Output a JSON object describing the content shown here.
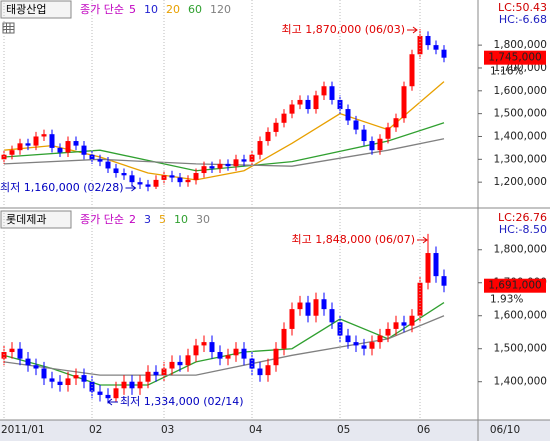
{
  "chart_data": [
    {
      "type": "candlestick",
      "title": "태광산업",
      "legend_prefix": "종가 단순",
      "series": [
        {
          "name": "5",
          "color": "#c000c0"
        },
        {
          "name": "10",
          "color": "#2020d0"
        },
        {
          "name": "20",
          "color": "#e8a000",
          "x": [
            0,
            6,
            12,
            18,
            24,
            30,
            36,
            42,
            48,
            55
          ],
          "values": [
            1340000,
            1360000,
            1310000,
            1240000,
            1210000,
            1250000,
            1370000,
            1500000,
            1430000,
            1640000
          ]
        },
        {
          "name": "60",
          "color": "#30a030",
          "x": [
            0,
            12,
            24,
            36,
            48,
            55
          ],
          "values": [
            1310000,
            1340000,
            1250000,
            1290000,
            1380000,
            1460000
          ]
        },
        {
          "name": "120",
          "color": "#808080",
          "x": [
            0,
            12,
            24,
            36,
            48,
            55
          ],
          "values": [
            1280000,
            1300000,
            1280000,
            1270000,
            1340000,
            1390000
          ]
        }
      ],
      "open": [
        1300000,
        1320000,
        1340000,
        1370000,
        1360000,
        1400000,
        1410000,
        1350000,
        1330000,
        1380000,
        1360000,
        1320000,
        1300000,
        1290000,
        1260000,
        1240000,
        1230000,
        1200000,
        1190000,
        1180000,
        1210000,
        1230000,
        1220000,
        1200000,
        1210000,
        1240000,
        1270000,
        1260000,
        1280000,
        1270000,
        1300000,
        1290000,
        1320000,
        1380000,
        1420000,
        1460000,
        1500000,
        1540000,
        1560000,
        1520000,
        1580000,
        1620000,
        1560000,
        1520000,
        1470000,
        1430000,
        1380000,
        1340000,
        1390000,
        1440000,
        1480000,
        1620000,
        1760000,
        1840000,
        1800000,
        1780000
      ],
      "high": [
        1340000,
        1360000,
        1390000,
        1390000,
        1420000,
        1430000,
        1430000,
        1370000,
        1400000,
        1400000,
        1380000,
        1340000,
        1320000,
        1310000,
        1280000,
        1260000,
        1250000,
        1220000,
        1210000,
        1230000,
        1250000,
        1250000,
        1240000,
        1230000,
        1260000,
        1290000,
        1290000,
        1300000,
        1300000,
        1320000,
        1320000,
        1340000,
        1400000,
        1440000,
        1480000,
        1520000,
        1560000,
        1580000,
        1580000,
        1600000,
        1640000,
        1640000,
        1580000,
        1540000,
        1490000,
        1450000,
        1400000,
        1410000,
        1460000,
        1500000,
        1640000,
        1780000,
        1870000,
        1860000,
        1820000,
        1800000
      ],
      "low": [
        1280000,
        1300000,
        1320000,
        1340000,
        1340000,
        1380000,
        1330000,
        1310000,
        1310000,
        1340000,
        1300000,
        1280000,
        1270000,
        1240000,
        1220000,
        1210000,
        1180000,
        1170000,
        1160000,
        1170000,
        1190000,
        1200000,
        1180000,
        1180000,
        1190000,
        1220000,
        1240000,
        1240000,
        1250000,
        1250000,
        1270000,
        1270000,
        1300000,
        1360000,
        1400000,
        1440000,
        1480000,
        1520000,
        1500000,
        1500000,
        1560000,
        1540000,
        1500000,
        1450000,
        1410000,
        1360000,
        1320000,
        1320000,
        1370000,
        1420000,
        1460000,
        1600000,
        1740000,
        1780000,
        1760000,
        1725000
      ],
      "close": [
        1320000,
        1340000,
        1370000,
        1360000,
        1400000,
        1410000,
        1350000,
        1330000,
        1380000,
        1360000,
        1320000,
        1300000,
        1290000,
        1260000,
        1240000,
        1230000,
        1200000,
        1190000,
        1180000,
        1210000,
        1230000,
        1220000,
        1200000,
        1210000,
        1240000,
        1270000,
        1260000,
        1280000,
        1270000,
        1300000,
        1290000,
        1320000,
        1380000,
        1420000,
        1460000,
        1500000,
        1540000,
        1560000,
        1520000,
        1580000,
        1620000,
        1560000,
        1520000,
        1470000,
        1430000,
        1380000,
        1340000,
        1390000,
        1440000,
        1480000,
        1620000,
        1760000,
        1840000,
        1800000,
        1780000,
        1745000
      ],
      "ylim": [
        1100000,
        1910000
      ],
      "yticks": [
        {
          "value": 1200000,
          "label": "1,200,000"
        },
        {
          "value": 1300000,
          "label": "1,300,000"
        },
        {
          "value": 1400000,
          "label": "1,400,000"
        },
        {
          "value": 1500000,
          "label": "1,500,000"
        },
        {
          "value": 1600000,
          "label": "1,600,000"
        },
        {
          "value": 1700000,
          "label": "1,700,000"
        },
        {
          "value": 1800000,
          "label": "1,800,000"
        }
      ],
      "high_note": "최고 1,870,000 (06/03)",
      "low_note": "최저 1,160,000 (02/28)",
      "lc": "LC:50.43",
      "hc": "HC:-6.68",
      "last_label": "1,745,000",
      "change": "1.16%"
    },
    {
      "type": "candlestick",
      "title": "롯데제과",
      "legend_prefix": "종가 단순",
      "series": [
        {
          "name": "2",
          "color": "#c000c0"
        },
        {
          "name": "3",
          "color": "#2020d0"
        },
        {
          "name": "5",
          "color": "#e8a000"
        },
        {
          "name": "10",
          "color": "#30a030",
          "x": [
            0,
            6,
            12,
            18,
            24,
            30,
            36,
            42,
            48,
            55
          ],
          "values": [
            1480000,
            1440000,
            1390000,
            1390000,
            1460000,
            1490000,
            1500000,
            1590000,
            1530000,
            1640000
          ]
        },
        {
          "name": "30",
          "color": "#808080",
          "x": [
            0,
            12,
            24,
            36,
            48,
            55
          ],
          "values": [
            1460000,
            1420000,
            1420000,
            1480000,
            1530000,
            1600000
          ]
        }
      ],
      "open": [
        1470000,
        1490000,
        1500000,
        1470000,
        1450000,
        1440000,
        1410000,
        1400000,
        1390000,
        1410000,
        1420000,
        1400000,
        1370000,
        1360000,
        1350000,
        1380000,
        1400000,
        1380000,
        1400000,
        1430000,
        1420000,
        1440000,
        1460000,
        1450000,
        1480000,
        1510000,
        1520000,
        1490000,
        1470000,
        1480000,
        1500000,
        1470000,
        1440000,
        1420000,
        1450000,
        1500000,
        1560000,
        1620000,
        1640000,
        1600000,
        1650000,
        1620000,
        1580000,
        1540000,
        1520000,
        1510000,
        1500000,
        1520000,
        1540000,
        1560000,
        1580000,
        1570000,
        1600000,
        1700000,
        1790000,
        1720000
      ],
      "high": [
        1510000,
        1520000,
        1520000,
        1490000,
        1470000,
        1460000,
        1430000,
        1420000,
        1430000,
        1440000,
        1440000,
        1420000,
        1390000,
        1380000,
        1400000,
        1420000,
        1420000,
        1420000,
        1450000,
        1450000,
        1460000,
        1480000,
        1480000,
        1500000,
        1530000,
        1540000,
        1540000,
        1510000,
        1500000,
        1520000,
        1520000,
        1490000,
        1460000,
        1470000,
        1520000,
        1580000,
        1640000,
        1660000,
        1660000,
        1670000,
        1670000,
        1640000,
        1600000,
        1560000,
        1540000,
        1530000,
        1540000,
        1560000,
        1580000,
        1600000,
        1600000,
        1620000,
        1720000,
        1848000,
        1810000,
        1740000
      ],
      "low": [
        1450000,
        1470000,
        1450000,
        1430000,
        1420000,
        1390000,
        1380000,
        1370000,
        1370000,
        1390000,
        1380000,
        1350000,
        1340000,
        1334000,
        1340000,
        1360000,
        1360000,
        1360000,
        1380000,
        1400000,
        1400000,
        1420000,
        1430000,
        1430000,
        1460000,
        1490000,
        1470000,
        1450000,
        1450000,
        1460000,
        1450000,
        1420000,
        1400000,
        1400000,
        1430000,
        1480000,
        1540000,
        1600000,
        1580000,
        1580000,
        1600000,
        1560000,
        1520000,
        1500000,
        1490000,
        1480000,
        1480000,
        1500000,
        1520000,
        1540000,
        1550000,
        1550000,
        1580000,
        1680000,
        1700000,
        1671000
      ],
      "close": [
        1490000,
        1500000,
        1470000,
        1450000,
        1440000,
        1410000,
        1400000,
        1390000,
        1410000,
        1420000,
        1400000,
        1370000,
        1360000,
        1350000,
        1380000,
        1400000,
        1380000,
        1400000,
        1430000,
        1420000,
        1440000,
        1460000,
        1450000,
        1480000,
        1510000,
        1520000,
        1490000,
        1470000,
        1480000,
        1500000,
        1470000,
        1440000,
        1420000,
        1450000,
        1500000,
        1560000,
        1620000,
        1640000,
        1600000,
        1650000,
        1620000,
        1580000,
        1540000,
        1520000,
        1510000,
        1500000,
        1520000,
        1540000,
        1560000,
        1580000,
        1570000,
        1600000,
        1700000,
        1790000,
        1720000,
        1691000
      ],
      "ylim": [
        1290000,
        1875000
      ],
      "yticks": [
        {
          "value": 1400000,
          "label": "1,400,000"
        },
        {
          "value": 1500000,
          "label": "1,500,000"
        },
        {
          "value": 1600000,
          "label": "1,600,000"
        },
        {
          "value": 1700000,
          "label": "1,700,000"
        },
        {
          "value": 1800000,
          "label": "1,800,000"
        }
      ],
      "high_note": "최고 1,848,000 (06/07)",
      "low_note": "최저 1,334,000 (02/14)",
      "lc": "LC:26.76",
      "hc": "HC:-8.50",
      "last_label": "1,691,000",
      "change": "1.93%",
      "xticks": [
        {
          "value": 0,
          "label": "2011/01"
        },
        {
          "value": 11,
          "label": "02"
        },
        {
          "value": 20,
          "label": "03"
        },
        {
          "value": 31,
          "label": "04"
        },
        {
          "value": 42,
          "label": "05"
        },
        {
          "value": 52,
          "label": "06"
        }
      ],
      "last_date": "06/10"
    }
  ]
}
